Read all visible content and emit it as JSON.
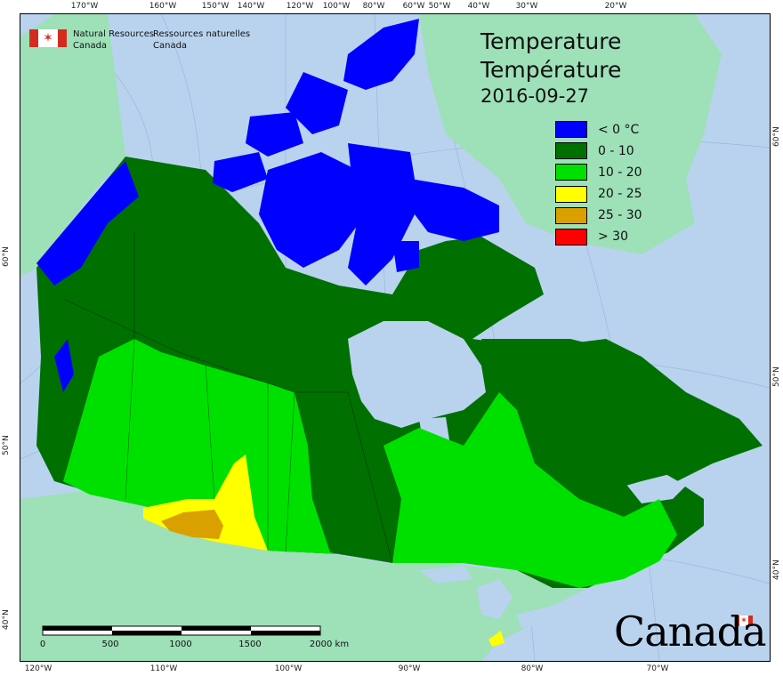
{
  "organization": {
    "en_line1": "Natural Resources",
    "en_line2": "Canada",
    "fr_line1": "Ressources naturelles",
    "fr_line2": "Canada"
  },
  "title": {
    "en": "Temperature",
    "fr": "Température",
    "date": "2016-09-27"
  },
  "legend": [
    {
      "label": "< 0 °C",
      "color": "#0000ff"
    },
    {
      "label": "0 - 10",
      "color": "#007000"
    },
    {
      "label": "10 - 20",
      "color": "#00e000"
    },
    {
      "label": "20 - 25",
      "color": "#ffff00"
    },
    {
      "label": "25 - 30",
      "color": "#d9a000"
    },
    {
      "label": "> 30",
      "color": "#ff0000"
    }
  ],
  "graticule": {
    "top_longitudes": [
      "170°W",
      "160°W",
      "150°W",
      "140°W",
      "120°W",
      "100°W",
      "80°W",
      "60°W",
      "50°W",
      "40°W",
      "30°W",
      "20°W"
    ],
    "bottom_longitudes": [
      "120°W",
      "110°W",
      "100°W",
      "90°W",
      "80°W",
      "70°W"
    ],
    "left_latitudes": [
      "60°N",
      "50°N",
      "40°N"
    ],
    "right_latitudes": [
      "60°N",
      "50°N",
      "40°N"
    ]
  },
  "scale_bar": {
    "labels": [
      "0",
      "500",
      "1000",
      "1500",
      "2000 km"
    ]
  },
  "wordmark": "Canada",
  "colors": {
    "ocean": "#b9d3ef",
    "foreign_land": "#9ee0b8",
    "flag_red": "#d52b1e"
  }
}
